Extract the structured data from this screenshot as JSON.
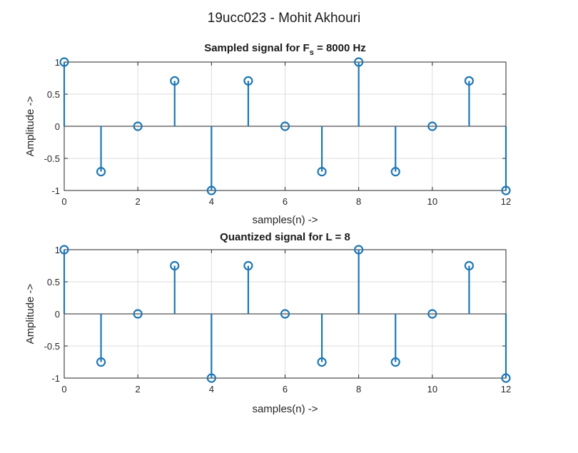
{
  "figure": {
    "suptitle": "19ucc023 - Mohit Akhouri",
    "series_color": "#1f77b4"
  },
  "chart_data": [
    {
      "type": "stem",
      "title_main": "Sampled signal for F",
      "title_sub": "s",
      "title_rest": " = 8000 Hz",
      "xlabel": "samples(n) ->",
      "ylabel": "Amplitude ->",
      "xlim": [
        0,
        12
      ],
      "ylim": [
        -1,
        1
      ],
      "xticks": [
        0,
        2,
        4,
        6,
        8,
        10,
        12
      ],
      "yticks": [
        -1,
        -0.5,
        0,
        0.5,
        1
      ],
      "grid": true,
      "x": [
        0,
        1,
        2,
        3,
        4,
        5,
        6,
        7,
        8,
        9,
        10,
        11,
        12
      ],
      "values": [
        1,
        -0.7071,
        0,
        0.7071,
        -1,
        0.7071,
        0,
        -0.7071,
        1,
        -0.7071,
        0,
        0.7071,
        -1
      ]
    },
    {
      "type": "stem",
      "title_main": "Quantized signal for L = 8",
      "title_sub": "",
      "title_rest": "",
      "xlabel": "samples(n) ->",
      "ylabel": "Amplitude ->",
      "xlim": [
        0,
        12
      ],
      "ylim": [
        -1,
        1
      ],
      "xticks": [
        0,
        2,
        4,
        6,
        8,
        10,
        12
      ],
      "yticks": [
        -1,
        -0.5,
        0,
        0.5,
        1
      ],
      "grid": true,
      "x": [
        0,
        1,
        2,
        3,
        4,
        5,
        6,
        7,
        8,
        9,
        10,
        11,
        12
      ],
      "values": [
        1,
        -0.75,
        0,
        0.75,
        -1,
        0.75,
        0,
        -0.75,
        1,
        -0.75,
        0,
        0.75,
        -1
      ]
    }
  ]
}
